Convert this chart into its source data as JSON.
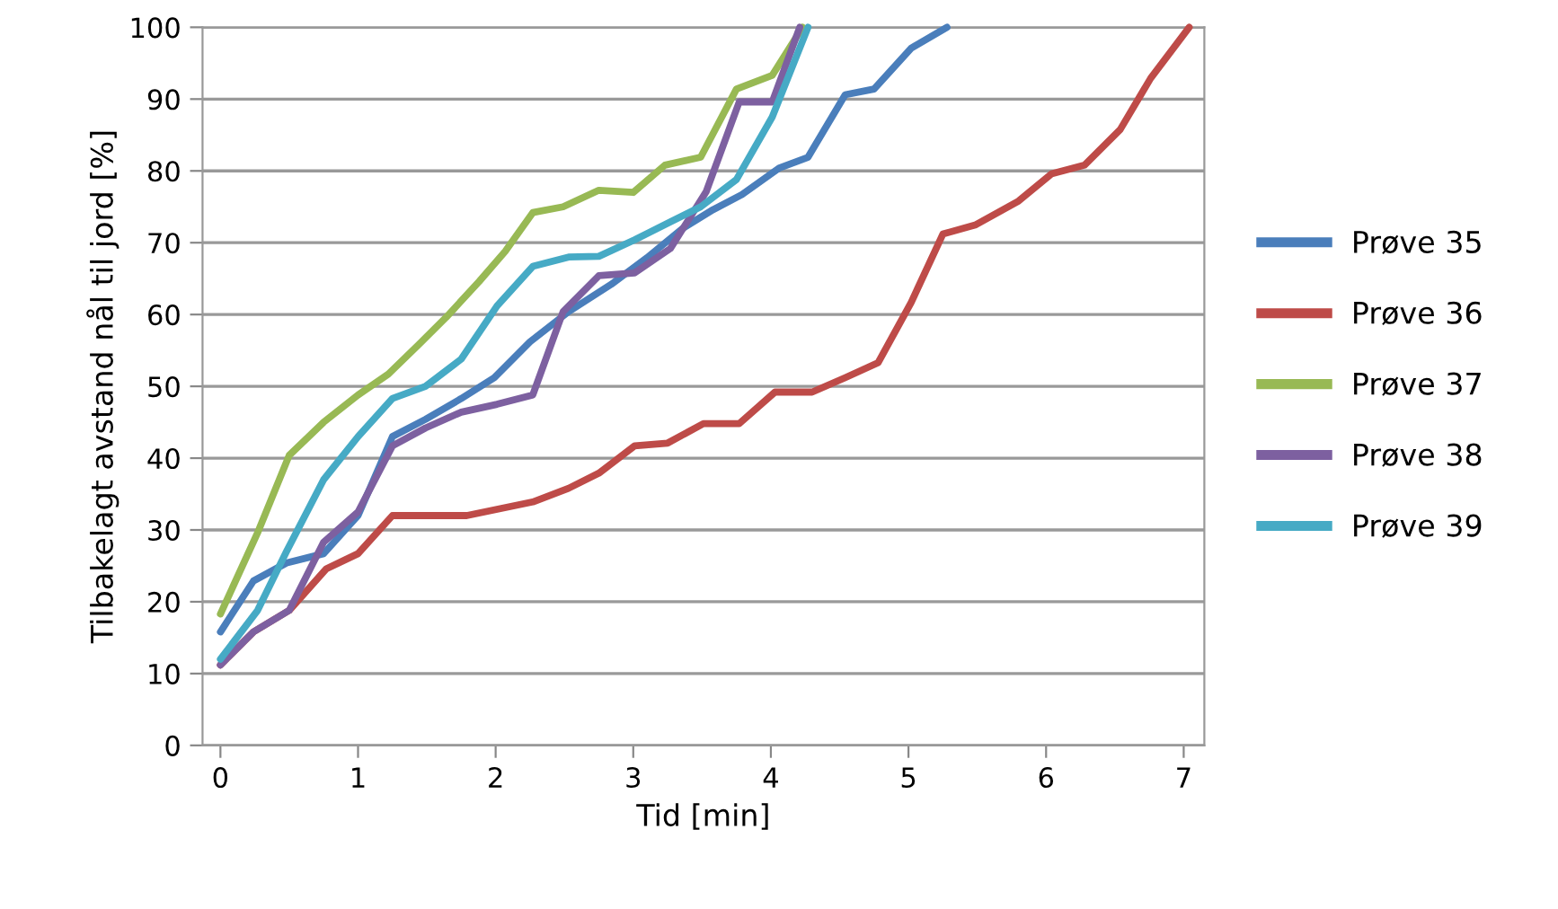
{
  "chart_data": {
    "type": "line",
    "xlabel": "Tid [min]",
    "ylabel": "Tilbakelagt avstand nål til jord [%]",
    "xlim": [
      -0.13,
      7.15
    ],
    "xticks": [
      0,
      1,
      2,
      3,
      4,
      5,
      6,
      7
    ],
    "ylim": [
      0,
      100
    ],
    "yticks": [
      0,
      10,
      20,
      30,
      40,
      50,
      60,
      70,
      80,
      90,
      100
    ],
    "grid": "y",
    "legend": "right",
    "marker": "none",
    "line_style": "solid",
    "series": [
      {
        "name": "Prøve 35",
        "color": "#4a7ebb",
        "x": [
          0,
          0.24,
          0.48,
          0.75,
          1.0,
          1.25,
          1.49,
          1.75,
          1.99,
          2.25,
          2.53,
          2.84,
          3.1,
          3.36,
          3.58,
          3.79,
          4.06,
          4.27,
          4.54,
          4.75,
          5.02,
          5.28
        ],
        "values": [
          15.8,
          22.9,
          25.4,
          26.7,
          32,
          43,
          45.4,
          48.3,
          51.2,
          56.2,
          60.4,
          64.2,
          67.9,
          72,
          74.6,
          76.7,
          80.4,
          81.9,
          90.6,
          91.4,
          97.1,
          100
        ]
      },
      {
        "name": "Prøve 36",
        "color": "#be4b48",
        "x": [
          0,
          0.24,
          0.5,
          0.77,
          1.0,
          1.25,
          1.79,
          2.27,
          2.53,
          2.75,
          3.01,
          3.25,
          3.51,
          3.77,
          4.03,
          4.3,
          4.54,
          4.78,
          5.02,
          5.25,
          5.49,
          5.8,
          6.04,
          6.28,
          6.54,
          6.76,
          7.04
        ],
        "values": [
          11.2,
          15.8,
          18.8,
          24.6,
          26.7,
          32,
          32,
          33.9,
          35.8,
          37.9,
          41.7,
          42.1,
          44.8,
          44.8,
          49.2,
          49.2,
          51.2,
          53.3,
          61.7,
          71.2,
          72.5,
          75.8,
          79.6,
          80.8,
          85.8,
          92.9,
          100
        ]
      },
      {
        "name": "Prøve 37",
        "color": "#98b954",
        "x": [
          0,
          0.27,
          0.5,
          0.75,
          1.0,
          1.22,
          1.44,
          1.64,
          1.88,
          2.07,
          2.27,
          2.49,
          2.75,
          3.0,
          3.23,
          3.49,
          3.75,
          4.01,
          4.23
        ],
        "values": [
          18.3,
          29.6,
          40.4,
          45,
          48.8,
          51.7,
          55.8,
          59.6,
          64.6,
          68.8,
          74.2,
          75,
          77.3,
          77,
          80.8,
          81.9,
          91.4,
          93.3,
          100
        ]
      },
      {
        "name": "Prøve 38",
        "color": "#7d60a0",
        "x": [
          0,
          0.24,
          0.5,
          0.75,
          1.0,
          1.25,
          1.49,
          1.75,
          2.01,
          2.27,
          2.49,
          2.75,
          3.01,
          3.27,
          3.53,
          3.77,
          4.01,
          4.21
        ],
        "values": [
          11.2,
          15.8,
          18.8,
          28.3,
          32.5,
          41.7,
          44.2,
          46.4,
          47.5,
          48.8,
          60.4,
          65.4,
          65.8,
          69.2,
          77.1,
          89.6,
          89.6,
          100
        ]
      },
      {
        "name": "Prøve 39",
        "color": "#46aac5",
        "x": [
          0,
          0.27,
          0.48,
          0.75,
          1.0,
          1.25,
          1.49,
          1.75,
          2.01,
          2.27,
          2.53,
          2.75,
          3.01,
          3.27,
          3.49,
          3.75,
          4.01,
          4.27
        ],
        "values": [
          12,
          18.8,
          27,
          37,
          43,
          48.3,
          50,
          53.8,
          61.2,
          66.7,
          68,
          68.1,
          70.4,
          72.9,
          75,
          78.8,
          87.5,
          100
        ]
      }
    ]
  }
}
